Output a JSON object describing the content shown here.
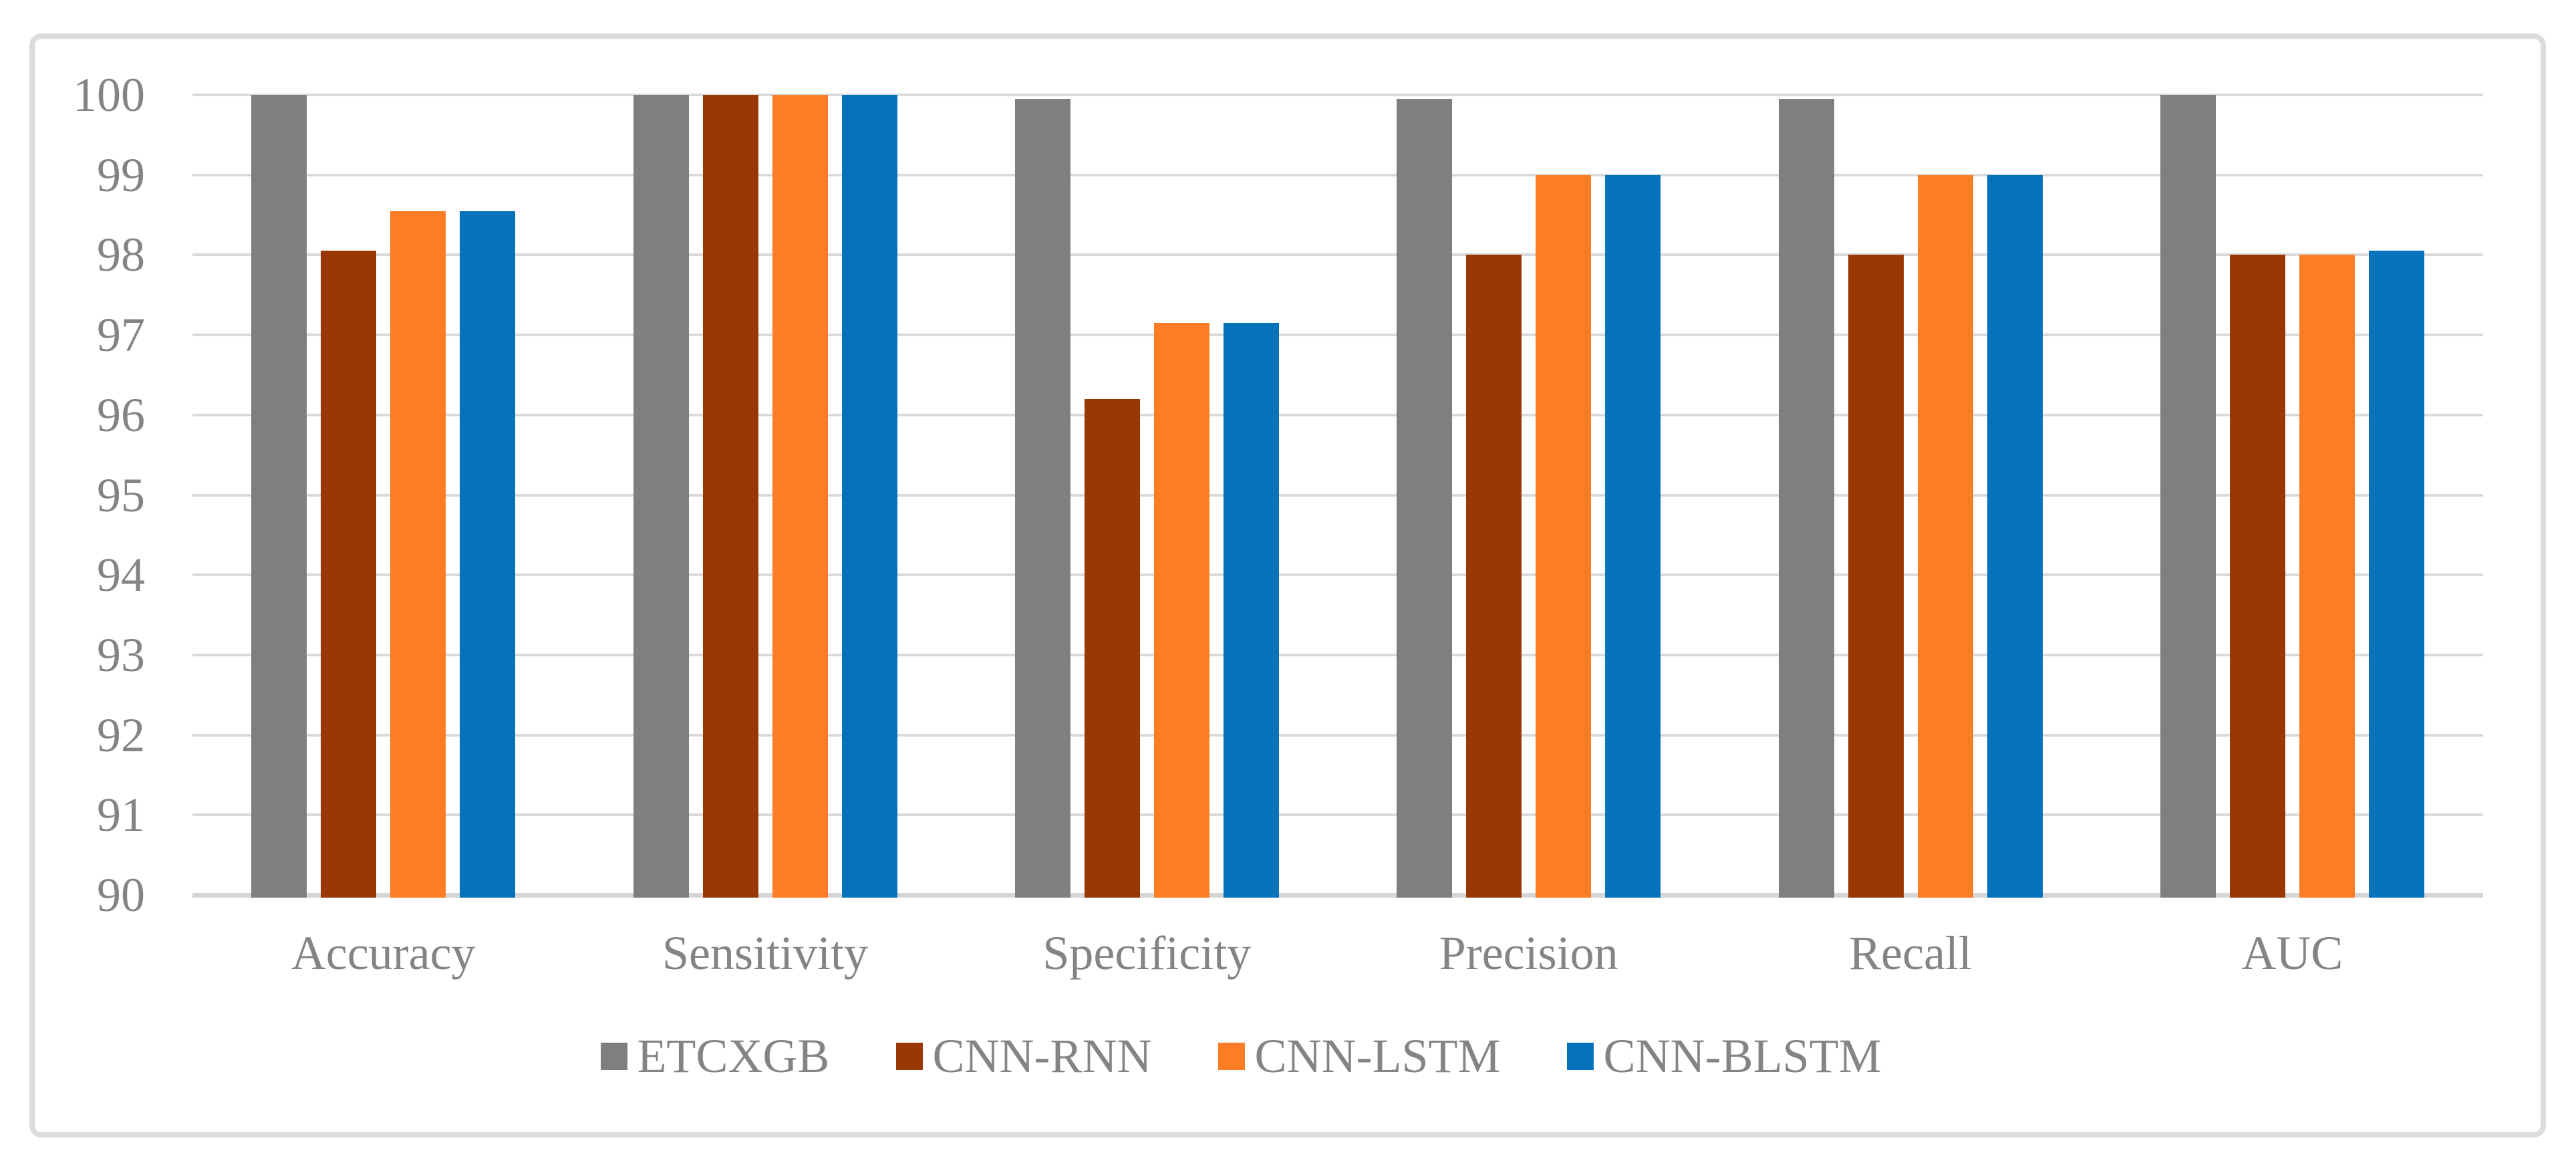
{
  "chart_data": {
    "type": "bar",
    "title": "",
    "xlabel": "",
    "ylabel": "",
    "categories": [
      "Accuracy",
      "Sensitivity",
      "Specificity",
      "Precision",
      "Recall",
      "AUC"
    ],
    "series": [
      {
        "name": "ETCXGB",
        "color": "#7f7f7f",
        "values": [
          100,
          100,
          99.95,
          99.95,
          99.95,
          100
        ]
      },
      {
        "name": "CNN-RNN",
        "color": "#993804",
        "values": [
          98.05,
          100,
          96.2,
          98,
          98,
          98
        ]
      },
      {
        "name": "CNN-LSTM",
        "color": "#fc7d26",
        "values": [
          98.55,
          100,
          97.15,
          99,
          99,
          98
        ]
      },
      {
        "name": "CNN-BLSTM",
        "color": "#0473bc",
        "values": [
          98.55,
          100,
          97.15,
          99,
          99,
          98.05
        ]
      }
    ],
    "ylim": [
      90,
      100
    ],
    "y_ticks": [
      "100",
      "99",
      "98",
      "97",
      "96",
      "95",
      "94",
      "93",
      "92",
      "91",
      "90"
    ],
    "grid": true,
    "legend_position": "bottom",
    "legend_entries": [
      "ETCXGB",
      "CNN-RNN",
      "CNN-LSTM",
      "CNN-BLSTM"
    ]
  },
  "palette": {
    "text_color": "#848484",
    "gridline_color": "#dadada",
    "axis_line_color": "#d6d6d6",
    "figure_border_color": "#dcdcdc",
    "background": "#ffffff"
  }
}
